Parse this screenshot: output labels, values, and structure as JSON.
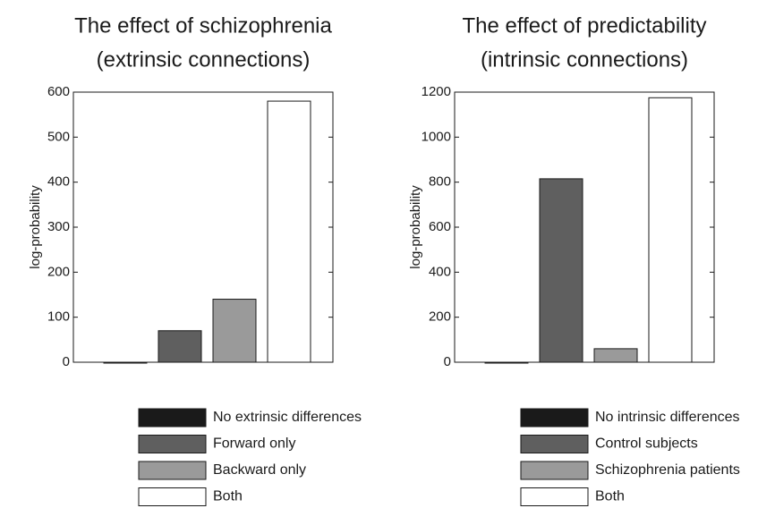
{
  "chart_data": [
    {
      "type": "bar",
      "title": [
        "The effect of schizophrenia",
        "(extrinsic connections)"
      ],
      "ylabel": "log-probability",
      "categories": [
        "No extrinsic differences",
        "Forward only",
        "Backward only",
        "Both"
      ],
      "values": [
        0,
        70,
        140,
        580
      ],
      "colors": [
        "#1a1a1a",
        "#5f5f5f",
        "#9a9a9a",
        "#ffffff"
      ],
      "ylim": [
        0,
        600
      ],
      "yticks": [
        0,
        100,
        200,
        300,
        400,
        500,
        600
      ]
    },
    {
      "type": "bar",
      "title": [
        "The effect of predictability",
        "(intrinsic connections)"
      ],
      "ylabel": "log-probability",
      "categories": [
        "No intrinsic differences",
        "Control subjects",
        "Schizophrenia patients",
        "Both"
      ],
      "values": [
        0,
        815,
        60,
        1175
      ],
      "colors": [
        "#1a1a1a",
        "#5f5f5f",
        "#9a9a9a",
        "#ffffff"
      ],
      "ylim": [
        0,
        1200
      ],
      "yticks": [
        0,
        200,
        400,
        600,
        800,
        1000,
        1200
      ]
    }
  ]
}
